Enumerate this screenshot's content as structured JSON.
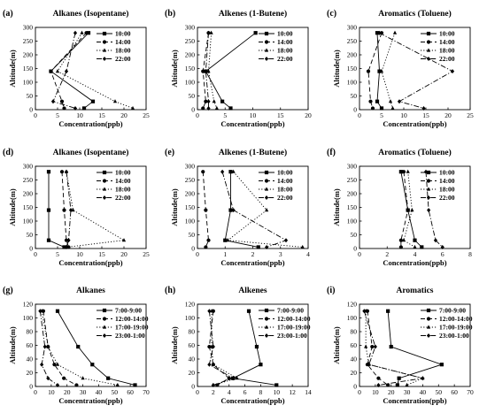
{
  "chart_data": [
    {
      "type": "line",
      "panel_label": "(a)",
      "title": "Alkanes (Isopentane)",
      "xlabel": "Concentration(ppb)",
      "ylabel": "Altitude(m)",
      "xlim": [
        0,
        25
      ],
      "ylim": [
        0,
        300
      ],
      "xticks": [
        0,
        5,
        10,
        15,
        20,
        25
      ],
      "yticks": [
        0,
        50,
        100,
        150,
        200,
        250,
        300
      ],
      "legend_position": "top-right",
      "series": [
        {
          "name": "10:00",
          "style": "solid",
          "marker": "square",
          "points": [
            [
              12,
              280
            ],
            [
              3.5,
              140
            ],
            [
              13,
              30
            ],
            [
              11,
              5
            ]
          ]
        },
        {
          "name": "14:00",
          "style": "dash",
          "marker": "circle",
          "points": [
            [
              11.5,
              280
            ],
            [
              3.5,
              140
            ],
            [
              6,
              30
            ],
            [
              6.5,
              5
            ]
          ]
        },
        {
          "name": "18:00",
          "style": "dot",
          "marker": "triangle",
          "points": [
            [
              10.5,
              280
            ],
            [
              5,
              140
            ],
            [
              18,
              30
            ],
            [
              22,
              5
            ]
          ]
        },
        {
          "name": "22:00",
          "style": "dashdot",
          "marker": "diamond",
          "points": [
            [
              9,
              280
            ],
            [
              7,
              140
            ],
            [
              4,
              30
            ],
            [
              9,
              5
            ]
          ]
        }
      ]
    },
    {
      "type": "line",
      "panel_label": "(b)",
      "title": "Alkenes (1-Butene)",
      "xlabel": "Concentration(ppb)",
      "ylabel": "Altitude(m)",
      "xlim": [
        0,
        20
      ],
      "ylim": [
        0,
        300
      ],
      "xticks": [
        0,
        5,
        10,
        15,
        20
      ],
      "yticks": [
        0,
        50,
        100,
        150,
        200,
        250,
        300
      ],
      "legend_position": "top-right",
      "series": [
        {
          "name": "10:00",
          "style": "solid",
          "marker": "square",
          "points": [
            [
              10.5,
              280
            ],
            [
              1.5,
              140
            ],
            [
              4.5,
              30
            ],
            [
              6,
              5
            ]
          ]
        },
        {
          "name": "14:00",
          "style": "dash",
          "marker": "circle",
          "points": [
            [
              2,
              280
            ],
            [
              1,
              140
            ],
            [
              1.5,
              30
            ],
            [
              1,
              5
            ]
          ]
        },
        {
          "name": "18:00",
          "style": "dot",
          "marker": "triangle",
          "points": [
            [
              2.5,
              280
            ],
            [
              2,
              140
            ],
            [
              3,
              30
            ],
            [
              3.5,
              5
            ]
          ]
        },
        {
          "name": "22:00",
          "style": "dashdot",
          "marker": "diamond",
          "points": [
            [
              2,
              280
            ],
            [
              1.5,
              140
            ],
            [
              2,
              30
            ],
            [
              2,
              5
            ]
          ]
        }
      ]
    },
    {
      "type": "line",
      "panel_label": "(c)",
      "title": "Aromatics (Toluene)",
      "xlabel": "Concentration(ppb)",
      "ylabel": "Altitude(m)",
      "xlim": [
        0,
        25
      ],
      "ylim": [
        0,
        300
      ],
      "xticks": [
        0,
        5,
        10,
        15,
        20,
        25
      ],
      "yticks": [
        0,
        50,
        100,
        150,
        200,
        250,
        300
      ],
      "legend_position": "top-right",
      "series": [
        {
          "name": "10:00",
          "style": "solid",
          "marker": "square",
          "points": [
            [
              4,
              280
            ],
            [
              4.5,
              140
            ],
            [
              4,
              30
            ],
            [
              5,
              5
            ]
          ]
        },
        {
          "name": "14:00",
          "style": "dash",
          "marker": "circle",
          "points": [
            [
              5,
              280
            ],
            [
              2,
              140
            ],
            [
              2.5,
              30
            ],
            [
              3,
              5
            ]
          ]
        },
        {
          "name": "18:00",
          "style": "dot",
          "marker": "triangle",
          "points": [
            [
              8,
              280
            ],
            [
              5,
              140
            ],
            [
              7,
              30
            ],
            [
              7.5,
              5
            ]
          ]
        },
        {
          "name": "22:00",
          "style": "dashdot",
          "marker": "diamond",
          "points": [
            [
              4.5,
              280
            ],
            [
              21,
              140
            ],
            [
              9,
              30
            ],
            [
              14.5,
              5
            ]
          ]
        }
      ]
    },
    {
      "type": "line",
      "panel_label": "(d)",
      "title": "Alkanes (Isopentane)",
      "xlabel": "Concentration(ppb)",
      "ylabel": "Altitude(m)",
      "xlim": [
        0,
        25
      ],
      "ylim": [
        0,
        300
      ],
      "xticks": [
        0,
        5,
        10,
        15,
        20,
        25
      ],
      "yticks": [
        0,
        50,
        100,
        150,
        200,
        250,
        300
      ],
      "legend_position": "top-right",
      "series": [
        {
          "name": "10:00",
          "style": "solid",
          "marker": "square",
          "points": [
            [
              3,
              280
            ],
            [
              3,
              140
            ],
            [
              3,
              30
            ],
            [
              6.5,
              5
            ]
          ]
        },
        {
          "name": "14:00",
          "style": "dash",
          "marker": "circle",
          "points": [
            [
              6,
              280
            ],
            [
              6.5,
              140
            ],
            [
              7,
              30
            ],
            [
              7.5,
              5
            ]
          ]
        },
        {
          "name": "18:00",
          "style": "dot",
          "marker": "triangle",
          "points": [
            [
              7,
              280
            ],
            [
              8.5,
              140
            ],
            [
              20,
              30
            ],
            [
              7,
              5
            ]
          ]
        },
        {
          "name": "22:00",
          "style": "dashdot",
          "marker": "diamond",
          "points": [
            [
              7,
              280
            ],
            [
              8,
              140
            ],
            [
              7.5,
              30
            ],
            [
              7,
              5
            ]
          ]
        }
      ]
    },
    {
      "type": "line",
      "panel_label": "(e)",
      "title": "Alkenes (1-Butene)",
      "xlabel": "Concentration(ppb)",
      "ylabel": "Altitude(m)",
      "xlim": [
        0,
        4
      ],
      "ylim": [
        0,
        300
      ],
      "xticks": [
        0,
        1,
        2,
        3,
        4
      ],
      "yticks": [
        0,
        50,
        100,
        150,
        200,
        250,
        300
      ],
      "legend_position": "top-right",
      "series": [
        {
          "name": "10:00",
          "style": "solid",
          "marker": "square",
          "points": [
            [
              1.2,
              280
            ],
            [
              1.2,
              140
            ],
            [
              1,
              30
            ],
            [
              2.2,
              5
            ]
          ]
        },
        {
          "name": "14:00",
          "style": "dash",
          "marker": "circle",
          "points": [
            [
              0.2,
              280
            ],
            [
              0.3,
              140
            ],
            [
              0.4,
              30
            ],
            [
              0.3,
              5
            ]
          ]
        },
        {
          "name": "18:00",
          "style": "dot",
          "marker": "triangle",
          "points": [
            [
              1.3,
              280
            ],
            [
              2.5,
              140
            ],
            [
              1.1,
              30
            ],
            [
              3.8,
              5
            ]
          ]
        },
        {
          "name": "22:00",
          "style": "dashdot",
          "marker": "diamond",
          "points": [
            [
              0.9,
              280
            ],
            [
              1.3,
              140
            ],
            [
              3.2,
              30
            ],
            [
              2.5,
              5
            ]
          ]
        }
      ]
    },
    {
      "type": "line",
      "panel_label": "(f)",
      "title": "Aromatics (Toluene)",
      "xlabel": "Concentration(ppb)",
      "ylabel": "Altitude(m)",
      "xlim": [
        0,
        8
      ],
      "ylim": [
        0,
        300
      ],
      "xticks": [
        0,
        2,
        4,
        6,
        8
      ],
      "yticks": [
        0,
        50,
        100,
        150,
        200,
        250,
        300
      ],
      "legend_position": "top-right",
      "series": [
        {
          "name": "10:00",
          "style": "solid",
          "marker": "square",
          "points": [
            [
              3,
              280
            ],
            [
              3.5,
              140
            ],
            [
              4,
              30
            ],
            [
              4.5,
              5
            ]
          ]
        },
        {
          "name": "14:00",
          "style": "dash",
          "marker": "circle",
          "points": [
            [
              3.2,
              280
            ],
            [
              3.5,
              140
            ],
            [
              3,
              30
            ],
            [
              3,
              5
            ]
          ]
        },
        {
          "name": "18:00",
          "style": "dot",
          "marker": "triangle",
          "points": [
            [
              3.5,
              280
            ],
            [
              3.8,
              140
            ],
            [
              3.2,
              30
            ],
            [
              4,
              5
            ]
          ]
        },
        {
          "name": "22:00",
          "style": "dashdot",
          "marker": "diamond",
          "points": [
            [
              4.8,
              280
            ],
            [
              5,
              140
            ],
            [
              5.5,
              30
            ],
            [
              6,
              5
            ]
          ]
        }
      ]
    },
    {
      "type": "line",
      "panel_label": "(g)",
      "title": "Alkanes",
      "xlabel": "Concentration(ppb)",
      "ylabel": "Altitude(m)",
      "xlim": [
        0,
        70
      ],
      "ylim": [
        0,
        120
      ],
      "xticks": [
        0,
        10,
        20,
        30,
        40,
        50,
        60,
        70
      ],
      "yticks": [
        0,
        20,
        40,
        60,
        80,
        100,
        120
      ],
      "legend_position": "top-right",
      "series": [
        {
          "name": "7:00-9:00",
          "style": "solid",
          "marker": "square",
          "points": [
            [
              14,
              110
            ],
            [
              27,
              58
            ],
            [
              36,
              32
            ],
            [
              46,
              12
            ],
            [
              63,
              2
            ]
          ]
        },
        {
          "name": "12:00-14:00",
          "style": "dash",
          "marker": "circle",
          "points": [
            [
              5,
              110
            ],
            [
              8,
              58
            ],
            [
              12,
              32
            ],
            [
              18,
              12
            ],
            [
              26,
              2
            ]
          ]
        },
        {
          "name": "17:00-19:00",
          "style": "dot",
          "marker": "triangle",
          "points": [
            [
              4,
              110
            ],
            [
              8,
              58
            ],
            [
              14,
              32
            ],
            [
              30,
              12
            ],
            [
              52,
              2
            ]
          ]
        },
        {
          "name": "23:00-1:00",
          "style": "dashdot",
          "marker": "diamond",
          "points": [
            [
              3,
              110
            ],
            [
              6,
              58
            ],
            [
              4,
              32
            ],
            [
              8,
              12
            ],
            [
              14,
              2
            ]
          ]
        }
      ]
    },
    {
      "type": "line",
      "panel_label": "(h)",
      "title": "Alkenes",
      "xlabel": "Concentration(ppb)",
      "ylabel": "Altitude(m)",
      "xlim": [
        0,
        14
      ],
      "ylim": [
        0,
        120
      ],
      "xticks": [
        0,
        2,
        4,
        6,
        8,
        10,
        12,
        14
      ],
      "yticks": [
        0,
        20,
        40,
        60,
        80,
        100,
        120
      ],
      "legend_position": "top-right",
      "series": [
        {
          "name": "7:00-9:00",
          "style": "solid",
          "marker": "square",
          "points": [
            [
              6.5,
              110
            ],
            [
              7.5,
              58
            ],
            [
              8,
              32
            ],
            [
              4.5,
              12
            ],
            [
              10,
              2
            ]
          ]
        },
        {
          "name": "12:00-14:00",
          "style": "dash",
          "marker": "circle",
          "points": [
            [
              2,
              110
            ],
            [
              1.5,
              58
            ],
            [
              2,
              32
            ],
            [
              4,
              12
            ],
            [
              2.5,
              2
            ]
          ]
        },
        {
          "name": "17:00-19:00",
          "style": "dot",
          "marker": "triangle",
          "points": [
            [
              1.8,
              110
            ],
            [
              1.8,
              58
            ],
            [
              2,
              32
            ],
            [
              5,
              12
            ],
            [
              2,
              2
            ]
          ]
        },
        {
          "name": "23:00-1:00",
          "style": "dashdot",
          "marker": "diamond",
          "points": [
            [
              1.5,
              110
            ],
            [
              2,
              58
            ],
            [
              1.5,
              32
            ],
            [
              4.5,
              12
            ],
            [
              2,
              2
            ]
          ]
        }
      ]
    },
    {
      "type": "line",
      "panel_label": "(i)",
      "title": "Aromatics",
      "xlabel": "Concentration(ppb)",
      "ylabel": "Altitude(m)",
      "xlim": [
        0,
        70
      ],
      "ylim": [
        0,
        120
      ],
      "xticks": [
        0,
        10,
        20,
        30,
        40,
        50,
        60,
        70
      ],
      "yticks": [
        0,
        20,
        40,
        60,
        80,
        100,
        120
      ],
      "legend_position": "top-right",
      "series": [
        {
          "name": "7:00-9:00",
          "style": "solid",
          "marker": "square",
          "points": [
            [
              18,
              110
            ],
            [
              20,
              58
            ],
            [
              52,
              32
            ],
            [
              25,
              12
            ],
            [
              24,
              2
            ]
          ]
        },
        {
          "name": "12:00-14:00",
          "style": "dash",
          "marker": "circle",
          "points": [
            [
              5,
              110
            ],
            [
              8,
              58
            ],
            [
              5,
              32
            ],
            [
              12,
              12
            ],
            [
              18,
              2
            ]
          ]
        },
        {
          "name": "17:00-19:00",
          "style": "dot",
          "marker": "triangle",
          "points": [
            [
              4,
              110
            ],
            [
              4,
              58
            ],
            [
              6,
              32
            ],
            [
              40,
              12
            ],
            [
              30,
              2
            ]
          ]
        },
        {
          "name": "23:00-1:00",
          "style": "dashdot",
          "marker": "diamond",
          "points": [
            [
              3,
              110
            ],
            [
              10,
              58
            ],
            [
              6,
              32
            ],
            [
              40,
              12
            ],
            [
              12,
              2
            ]
          ]
        }
      ]
    }
  ]
}
